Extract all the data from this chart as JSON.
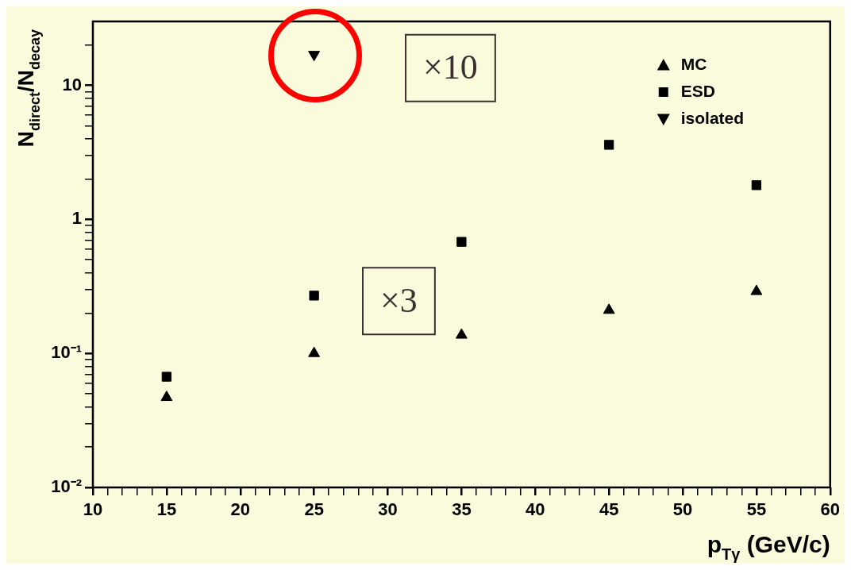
{
  "chart_data": {
    "type": "scatter",
    "xlabel": "p$_{Tγ}$ (GeV/c)",
    "ylabel": "N$_{direct}$/N$_{decay}$",
    "series": [
      {
        "name": "MC",
        "color": "#000000",
        "marker": "triangle",
        "x": [
          15,
          25,
          35,
          45,
          55
        ],
        "values": [
          0.047,
          0.1,
          0.137,
          0.21,
          0.29
        ]
      },
      {
        "name": "ESD",
        "color": "#000000",
        "marker": "square",
        "x": [
          15,
          25,
          35,
          45,
          55
        ],
        "values": [
          0.067,
          0.27,
          0.68,
          3.6,
          1.8
        ]
      },
      {
        "name": "isolated",
        "color": "#000000",
        "x": [
          25
        ],
        "values": [
          17
        ]
      }
    ],
    "annotations": [
      "×10",
      "×3"
    ],
    "log": "y",
    "xlim": [
      10,
      60
    ],
    "ylim": [
      0.01,
      30
    ],
    "xticks": [
      10,
      {
        "value": 11,
        "label": null
      },
      {
        "value": 12,
        "label": null
      },
      {
        "value": 13,
        "label": null
      },
      {
        "value": 14,
        "label": null
      },
      15,
      {
        "value": 16,
        "label": null
      },
      {
        "value": 17,
        "label": null
      },
      {
        "value": 18,
        "label": null
      },
      {
        "value": 19,
        "label": null
      },
      20,
      {
        "value": 21,
        "label": null
      },
      {
        "value": 22,
        "label": null
      },
      {
        "value": 23,
        "label": null
      },
      {
        "value": 24,
        "label": null
      },
      25,
      {
        "value": 26,
        "label": null
      },
      {
        "value": 27,
        "label": null
      },
      {
        "value": 28,
        "label": null
      },
      {
        "value": 29,
        "label": null
      },
      30,
      {
        "value": 31,
        "label": null
      },
      {
        "value": 32,
        "label": null
      },
      {
        "value": 33,
        "label": null
      },
      {
        "value": 34,
        "label": null
      },
      35,
      {
        "value": 36,
        "label": null
      },
      {
        "value": 37,
        "label": null
      },
      {
        "value": 38,
        "label": null
      },
      {
        "value": 39,
        "label": null
      },
      40,
      {
        "value": 41,
        "label": null
      },
      {
        "value": 42,
        "label": null
      },
      {
        "value": 43,
        "label": null
      },
      {
        "value": 44,
        "label": null
      },
      45,
      {
        "value": 46,
        "label": null
      },
      {
        "value": 47,
        "label": null
      },
      {
        "value": 48,
        "label": null
      },
      {
        "value": 49,
        "label": null
      },
      50,
      {
        "value": 51,
        "label": null
      },
      {
        "value": 52,
        "label": null
      },
      {
        "value": 53,
        "label": null
      },
      {
        "value": 54,
        "label": null
      },
      55,
      {
        "value": 56,
        "label": null
      },
      {
        "value": 57,
        "label": null
      },
      {
        "value": 58,
        "label": null
      },
      {
        "value": 59,
        "label": null
      },
      60
    ],
    "yticks": [
      {
        "value": 0.01,
        "label": "10⁻²"
      },
      {
        "value": 0.02,
        "label": null
      },
      {
        "value": 0.03,
        "label": null
      },
      {
        "value": 0.04,
        "label": null
      },
      {
        "value": 0.05,
        "label": null
      },
      {
        "value": 0.06,
        "label": null
      },
      {
        "value": 0.07,
        "label": null
      },
      {
        "value": 0.08,
        "label": null
      },
      {
        "value": 0.09,
        "label": null
      },
      {
        "value": 0.1,
        "label": "10⁻¹"
      },
      {
        "value": 0.2,
        "label": null
      },
      {
        "value": 0.3,
        "label": null
      },
      {
        "value": 0.4,
        "label": null
      },
      {
        "value": 0.5,
        "label": null
      },
      {
        "value": 0.6,
        "label": null
      },
      {
        "value": 0.7,
        "label": null
      },
      {
        "value": 0.8,
        "label": null
      },
      {
        "value": 0.9,
        "label": null
      },
      1,
      {
        "value": 2,
        "label": null
      },
      {
        "value": 3,
        "label": null
      },
      {
        "value": 4,
        "label": null
      },
      {
        "value": 5,
        "label": null
      },
      {
        "value": 6,
        "label": null
      },
      {
        "value": 7,
        "label": null
      },
      {
        "value": 8,
        "label": null
      },
      {
        "value": 9,
        "label": null
      },
      10,
      {
        "value": 20,
        "label": null
      }
    ],
    "grid": false,
    "legend": "top right"
  }
}
